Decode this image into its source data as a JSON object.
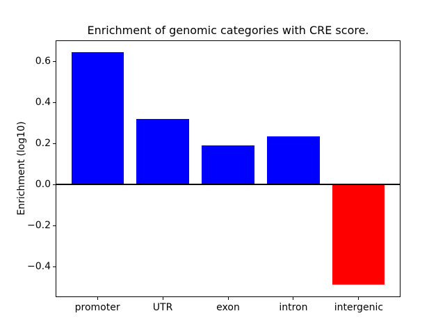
{
  "chart_data": {
    "type": "bar",
    "title": "Enrichment of genomic categories with CRE score.",
    "xlabel": "",
    "ylabel": "Enrichment (log10)",
    "categories": [
      "promoter",
      "UTR",
      "exon",
      "intron",
      "intergenic"
    ],
    "values": [
      0.645,
      0.32,
      0.19,
      0.235,
      -0.488
    ],
    "bar_colors": [
      "#0000ff",
      "#0000ff",
      "#0000ff",
      "#0000ff",
      "#ff0000"
    ],
    "bar_width": 0.8,
    "ylim": [
      -0.549,
      0.702
    ],
    "xlim": [
      -0.64,
      4.64
    ],
    "ytick_values": [
      0.6,
      0.4,
      0.2,
      0.0,
      -0.2,
      -0.4
    ],
    "ytick_labels": [
      "0.6",
      "0.4",
      "0.2",
      "0.0",
      "−0.2",
      "−0.4"
    ],
    "zero_line": true,
    "zero_line_color": "#000000",
    "grid": false,
    "legend": false,
    "background": "#ffffff",
    "spine_color": "#000000",
    "text_color": "#000000"
  }
}
